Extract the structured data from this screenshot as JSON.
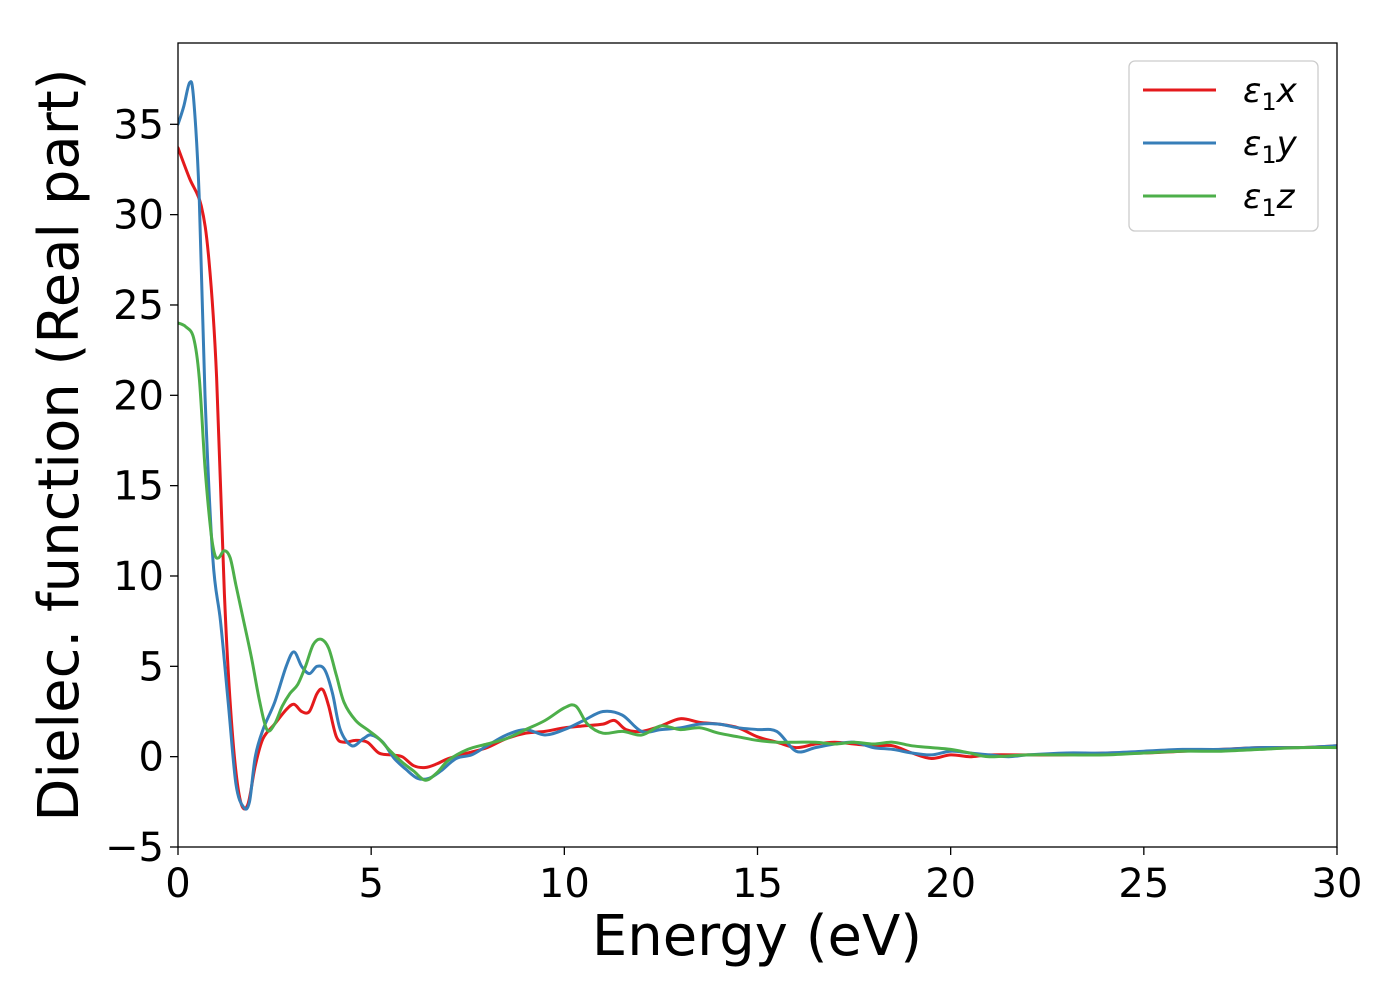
{
  "chart_data": {
    "type": "line",
    "xlabel": "Energy (eV)",
    "ylabel": "Dielec. function (Real part)",
    "xlim": [
      0,
      30
    ],
    "ylim": [
      -5,
      39.5
    ],
    "xticks": [
      0,
      5,
      10,
      15,
      20,
      25,
      30
    ],
    "yticks": [
      -5,
      0,
      5,
      10,
      15,
      20,
      25,
      30,
      35
    ],
    "xtick_labels": [
      "0",
      "5",
      "10",
      "15",
      "20",
      "25",
      "30"
    ],
    "ytick_labels": [
      "−5",
      "0",
      "5",
      "10",
      "15",
      "20",
      "25",
      "30",
      "35"
    ],
    "grid": false,
    "legend_position": "top-right",
    "series": [
      {
        "name": "ε₁x",
        "legend": {
          "base": "ε",
          "sub": "1",
          "suffix": "x"
        },
        "color": "#e41a1c",
        "x": [
          0,
          0.3,
          0.6,
          0.8,
          1.0,
          1.2,
          1.4,
          1.6,
          1.8,
          2.0,
          2.2,
          2.5,
          2.8,
          3.0,
          3.2,
          3.4,
          3.6,
          3.75,
          3.9,
          4.1,
          4.3,
          4.6,
          4.9,
          5.2,
          5.5,
          5.8,
          6.1,
          6.4,
          6.7,
          7.0,
          7.5,
          8.0,
          8.5,
          9.0,
          9.5,
          10.0,
          10.5,
          11.0,
          11.3,
          11.6,
          12.0,
          12.5,
          13.0,
          13.5,
          14.0,
          14.5,
          15.0,
          15.5,
          16.0,
          16.5,
          17.0,
          17.5,
          18.0,
          18.5,
          19.0,
          19.5,
          20.0,
          20.5,
          21.0,
          22.0,
          23.0,
          24.0,
          25.0,
          26.0,
          27.0,
          28.0,
          29.0,
          30.0
        ],
        "y": [
          33.7,
          32.0,
          30.5,
          27.5,
          21.0,
          9.0,
          1.5,
          -2.3,
          -2.7,
          -0.5,
          1.0,
          1.8,
          2.6,
          2.9,
          2.5,
          2.5,
          3.5,
          3.7,
          2.8,
          1.1,
          0.8,
          0.9,
          0.8,
          0.2,
          0.1,
          0.0,
          -0.5,
          -0.6,
          -0.4,
          -0.1,
          0.2,
          0.5,
          1.0,
          1.3,
          1.4,
          1.6,
          1.7,
          1.8,
          2.0,
          1.5,
          1.4,
          1.7,
          2.1,
          1.9,
          1.8,
          1.6,
          1.1,
          0.8,
          0.5,
          0.7,
          0.8,
          0.7,
          0.6,
          0.6,
          0.2,
          -0.1,
          0.1,
          0.0,
          0.1,
          0.1,
          0.1,
          0.2,
          0.2,
          0.3,
          0.4,
          0.5,
          0.5,
          0.6
        ]
      },
      {
        "name": "ε₁y",
        "legend": {
          "base": "ε",
          "sub": "1",
          "suffix": "y"
        },
        "color": "#377eb8",
        "x": [
          0,
          0.15,
          0.3,
          0.4,
          0.55,
          0.7,
          0.9,
          1.1,
          1.3,
          1.5,
          1.7,
          1.85,
          2.0,
          2.2,
          2.5,
          2.8,
          3.0,
          3.2,
          3.4,
          3.6,
          3.8,
          4.0,
          4.2,
          4.5,
          4.8,
          5.0,
          5.3,
          5.6,
          5.9,
          6.2,
          6.5,
          6.8,
          7.2,
          7.6,
          8.0,
          8.5,
          9.0,
          9.5,
          10.0,
          10.5,
          11.0,
          11.5,
          12.0,
          12.5,
          13.0,
          13.5,
          14.0,
          14.5,
          15.0,
          15.5,
          16.0,
          16.5,
          17.0,
          17.5,
          18.0,
          18.5,
          19.0,
          19.5,
          20.0,
          20.5,
          21.0,
          21.5,
          22.0,
          23.0,
          24.0,
          25.0,
          26.0,
          27.0,
          28.0,
          29.0,
          30.0
        ],
        "y": [
          35.0,
          36.0,
          37.3,
          36.5,
          31.0,
          20.0,
          11.0,
          7.5,
          3.0,
          -1.5,
          -2.8,
          -2.5,
          0.0,
          1.5,
          3.0,
          5.0,
          5.8,
          5.0,
          4.6,
          5.0,
          4.8,
          3.5,
          1.5,
          0.6,
          1.0,
          1.2,
          0.8,
          -0.1,
          -0.7,
          -1.2,
          -1.2,
          -0.8,
          -0.1,
          0.1,
          0.6,
          1.2,
          1.5,
          1.2,
          1.5,
          2.0,
          2.5,
          2.3,
          1.4,
          1.5,
          1.6,
          1.8,
          1.8,
          1.6,
          1.5,
          1.4,
          0.3,
          0.5,
          0.7,
          0.8,
          0.5,
          0.4,
          0.2,
          0.1,
          0.3,
          0.2,
          0.1,
          0.0,
          0.1,
          0.2,
          0.2,
          0.3,
          0.4,
          0.4,
          0.5,
          0.5,
          0.6
        ]
      },
      {
        "name": "ε₁z",
        "legend": {
          "base": "ε",
          "sub": "1",
          "suffix": "z"
        },
        "color": "#4daf4a",
        "x": [
          0,
          0.2,
          0.4,
          0.55,
          0.7,
          0.85,
          0.95,
          1.05,
          1.2,
          1.35,
          1.5,
          1.7,
          1.9,
          2.1,
          2.3,
          2.5,
          2.7,
          2.9,
          3.1,
          3.3,
          3.5,
          3.7,
          3.9,
          4.1,
          4.3,
          4.6,
          4.9,
          5.2,
          5.5,
          5.8,
          6.1,
          6.4,
          6.7,
          7.0,
          7.5,
          8.0,
          8.5,
          9.0,
          9.5,
          10.0,
          10.3,
          10.6,
          11.0,
          11.5,
          12.0,
          12.5,
          13.0,
          13.5,
          14.0,
          14.5,
          15.0,
          15.5,
          16.0,
          16.5,
          17.0,
          17.5,
          18.0,
          18.5,
          19.0,
          19.5,
          20.0,
          20.5,
          21.0,
          22.0,
          23.0,
          24.0,
          25.0,
          26.0,
          27.0,
          28.0,
          29.0,
          30.0
        ],
        "y": [
          24.0,
          23.8,
          23.2,
          21.0,
          16.0,
          12.5,
          11.2,
          11.0,
          11.4,
          11.0,
          9.5,
          7.5,
          5.5,
          3.2,
          1.5,
          1.8,
          2.8,
          3.5,
          4.0,
          5.0,
          6.2,
          6.5,
          6.0,
          4.5,
          3.0,
          2.0,
          1.5,
          1.0,
          0.3,
          -0.3,
          -0.8,
          -1.3,
          -0.9,
          -0.2,
          0.4,
          0.7,
          1.0,
          1.5,
          2.0,
          2.7,
          2.8,
          1.8,
          1.3,
          1.4,
          1.2,
          1.7,
          1.5,
          1.6,
          1.3,
          1.1,
          0.9,
          0.8,
          0.8,
          0.8,
          0.7,
          0.8,
          0.7,
          0.8,
          0.6,
          0.5,
          0.4,
          0.2,
          0.0,
          0.1,
          0.1,
          0.1,
          0.2,
          0.3,
          0.3,
          0.4,
          0.5,
          0.5
        ]
      }
    ]
  }
}
